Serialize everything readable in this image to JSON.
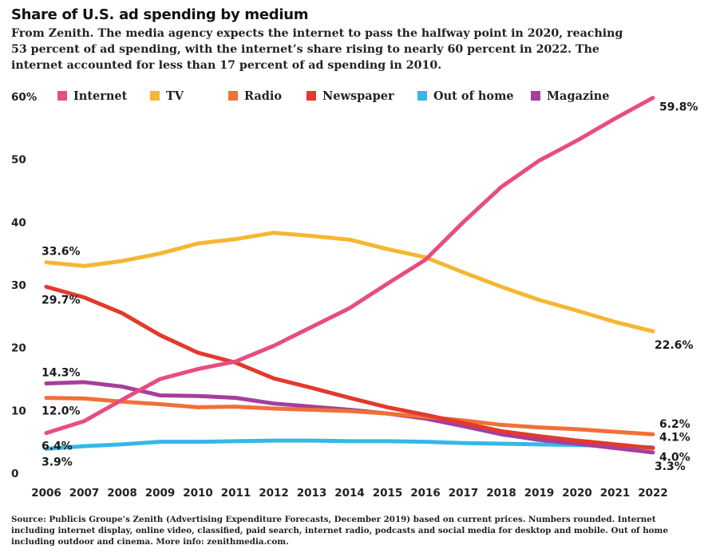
{
  "title": "Share of U.S. ad spending by medium",
  "subtitle": "From Zenith. The media agency expects the internet to pass the halfway point in 2020, reaching 53 percent of ad spending, with the internet’s share rising to nearly 60 percent in 2022. The internet accounted for less than 17 percent of ad spending in 2010.",
  "source": "Source: Publicis Groupe’s Zenith (Advertising Expenditure Forecasts, December 2019) based on current prices. Numbers rounded. Internet including internet display, online video, classified, paid search, internet radio, podcasts and social media for desktop and mobile. Out of home including outdoor and cinema. More info: zenithmedia.com.",
  "chart_data": {
    "type": "line",
    "title": "Share of U.S. ad spending by medium",
    "xlabel": "",
    "ylabel": "",
    "x": [
      2006,
      2007,
      2008,
      2009,
      2010,
      2011,
      2012,
      2013,
      2014,
      2015,
      2016,
      2017,
      2018,
      2019,
      2020,
      2021,
      2022
    ],
    "ylim": [
      0,
      60
    ],
    "yticks": [
      0,
      10,
      20,
      30,
      40,
      50,
      60
    ],
    "ytick_labels": [
      "0",
      "10",
      "20",
      "30",
      "40",
      "50",
      "60%"
    ],
    "grid": false,
    "legend_position": "top",
    "series": [
      {
        "name": "Internet",
        "color": "#e84c82",
        "values": [
          6.4,
          8.3,
          11.7,
          15.0,
          16.6,
          17.8,
          20.3,
          23.3,
          26.3,
          30.2,
          34.0,
          40.0,
          45.6,
          49.8,
          53.0,
          56.5,
          59.8
        ],
        "labels": [
          {
            "x": 2006,
            "text": "6.4%",
            "pos": "below"
          },
          {
            "x": 2022,
            "text": "59.8%",
            "pos": "right"
          }
        ]
      },
      {
        "name": "TV",
        "color": "#f5b731",
        "values": [
          33.6,
          33.0,
          33.8,
          35.0,
          36.6,
          37.3,
          38.3,
          37.8,
          37.2,
          35.7,
          34.4,
          32.0,
          29.7,
          27.6,
          25.9,
          24.1,
          22.6
        ],
        "labels": [
          {
            "x": 2006,
            "text": "33.6%",
            "pos": "above"
          },
          {
            "x": 2022,
            "text": "22.6%",
            "pos": "below-right"
          }
        ]
      },
      {
        "name": "Radio",
        "color": "#f07037",
        "values": [
          12.0,
          11.9,
          11.4,
          11.0,
          10.5,
          10.6,
          10.3,
          10.1,
          9.9,
          9.5,
          9.0,
          8.4,
          7.7,
          7.3,
          7.0,
          6.6,
          6.2
        ],
        "labels": [
          {
            "x": 2006,
            "text": "12.0%",
            "pos": "below"
          },
          {
            "x": 2022,
            "text": "6.2%",
            "pos": "above-right"
          }
        ]
      },
      {
        "name": "Newspaper",
        "color": "#e23a2c",
        "values": [
          29.7,
          28.0,
          25.5,
          22.0,
          19.2,
          17.6,
          15.1,
          13.6,
          12.0,
          10.5,
          9.3,
          8.0,
          6.7,
          5.9,
          5.2,
          4.6,
          4.0
        ],
        "labels": [
          {
            "x": 2006,
            "text": "29.7%",
            "pos": "below"
          },
          {
            "x": 2022,
            "text": "4.0%",
            "pos": "right"
          }
        ]
      },
      {
        "name": "Out of home",
        "color": "#35b8e5",
        "values": [
          3.9,
          4.3,
          4.6,
          5.0,
          5.0,
          5.1,
          5.2,
          5.2,
          5.1,
          5.1,
          5.0,
          4.8,
          4.7,
          4.6,
          4.5,
          4.3,
          4.1
        ],
        "labels": [
          {
            "x": 2006,
            "text": "3.9%",
            "pos": "below"
          },
          {
            "x": 2022,
            "text": "4.1%",
            "pos": "above-right"
          }
        ]
      },
      {
        "name": "Magazine",
        "color": "#a43f9c",
        "values": [
          14.3,
          14.5,
          13.8,
          12.4,
          12.3,
          12.0,
          11.1,
          10.6,
          10.1,
          9.5,
          8.7,
          7.5,
          6.2,
          5.3,
          4.7,
          4.0,
          3.3
        ],
        "labels": [
          {
            "x": 2006,
            "text": "14.3%",
            "pos": "above"
          },
          {
            "x": 2022,
            "text": "3.3%",
            "pos": "below-right"
          }
        ]
      }
    ]
  }
}
